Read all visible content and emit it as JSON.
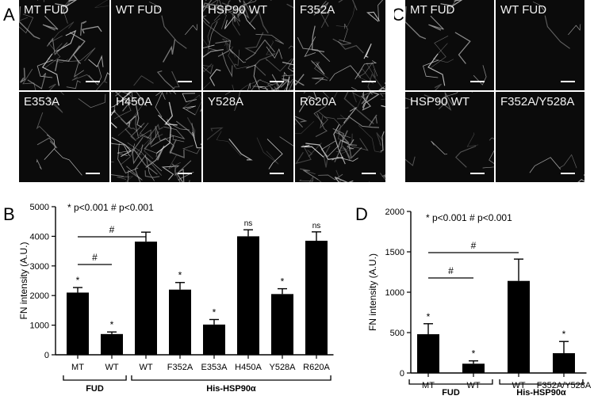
{
  "panels": {
    "A": "A",
    "B": "B",
    "C": "C",
    "D": "D"
  },
  "micrographs_A": {
    "labels": [
      "MT FUD",
      "WT FUD",
      "HSP90 WT",
      "F352A",
      "E353A",
      "H450A",
      "Y528A",
      "R620A"
    ],
    "fiber_density": [
      0.45,
      0.12,
      0.85,
      0.35,
      0.12,
      0.95,
      0.1,
      0.75
    ]
  },
  "micrographs_C": {
    "labels": [
      "MT FUD",
      "WT FUD",
      "HSP90 WT",
      "F352A/Y528A"
    ],
    "fiber_density": [
      0.15,
      0.05,
      0.15,
      0.04
    ]
  },
  "chart_data": [
    {
      "type": "bar",
      "panel": "B",
      "categories": [
        "MT",
        "WT",
        "WT",
        "F352A",
        "E353A",
        "H450A",
        "Y528A",
        "R620A"
      ],
      "values": [
        2100,
        700,
        3820,
        2200,
        1020,
        4000,
        2050,
        3850
      ],
      "errors": [
        170,
        70,
        320,
        240,
        170,
        220,
        180,
        300
      ],
      "markers": [
        "*",
        "*",
        "",
        "*",
        "*",
        "ns",
        "*",
        "ns"
      ],
      "groups": [
        {
          "label": "FUD",
          "range": [
            0,
            1
          ]
        },
        {
          "label": "His-HSP90α",
          "range": [
            2,
            7
          ]
        }
      ],
      "comparisons": [
        {
          "label": "#",
          "from": 0,
          "to": 2
        },
        {
          "label": "#",
          "from": 0,
          "to": 1
        }
      ],
      "legend_text": "* p<0.001    # p<0.001",
      "ylabel": "FN intensity (A.U.)",
      "ylim": [
        0,
        5000
      ],
      "yticks": [
        0,
        1000,
        2000,
        3000,
        4000,
        5000
      ]
    },
    {
      "type": "bar",
      "panel": "D",
      "categories": [
        "MT",
        "WT",
        "WT",
        "F352A/Y528A"
      ],
      "values": [
        480,
        115,
        1140,
        245
      ],
      "errors": [
        130,
        35,
        270,
        145
      ],
      "markers": [
        "*",
        "*",
        "",
        "*"
      ],
      "groups": [
        {
          "label": "FUD",
          "range": [
            0,
            1
          ]
        },
        {
          "label": "His-HSP90α",
          "range": [
            2,
            3
          ]
        }
      ],
      "comparisons": [
        {
          "label": "#",
          "from": 0,
          "to": 2
        },
        {
          "label": "#",
          "from": 0,
          "to": 1
        }
      ],
      "legend_text": "* p<0.001  # p<0.001",
      "ylabel": "FN intensity (A.U.)",
      "ylim": [
        0,
        2000
      ],
      "yticks": [
        0,
        500,
        1000,
        1500,
        2000
      ]
    }
  ]
}
